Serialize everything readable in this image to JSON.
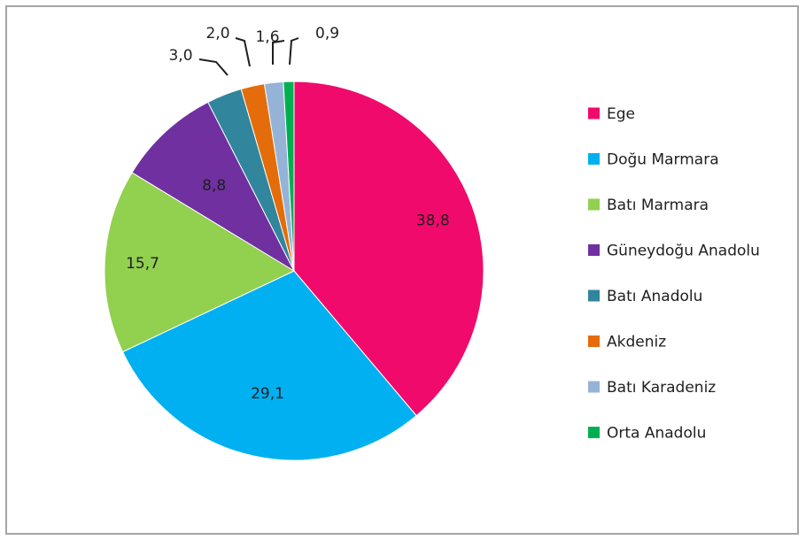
{
  "chart_data": {
    "type": "pie",
    "title": "",
    "legend_position": "right",
    "slices": [
      {
        "label": "Ege",
        "value": 38.8,
        "value_label": "38,8",
        "color": "#f00a6b"
      },
      {
        "label": "Doğu Marmara",
        "value": 29.1,
        "value_label": "29,1",
        "color": "#00b0f0"
      },
      {
        "label": "Batı Marmara",
        "value": 15.7,
        "value_label": "15,7",
        "color": "#92d050"
      },
      {
        "label": "Güneydoğu Anadolu",
        "value": 8.8,
        "value_label": "8,8",
        "color": "#7030a0"
      },
      {
        "label": "Batı Anadolu",
        "value": 3.0,
        "value_label": "3,0",
        "color": "#31859c"
      },
      {
        "label": "Akdeniz",
        "value": 2.0,
        "value_label": "2,0",
        "color": "#e46c0a"
      },
      {
        "label": "Batı Karadeniz",
        "value": 1.6,
        "value_label": "1,6",
        "color": "#95b3d7"
      },
      {
        "label": "Orta Anadolu",
        "value": 0.9,
        "value_label": "0,9",
        "color": "#00b050"
      }
    ]
  }
}
